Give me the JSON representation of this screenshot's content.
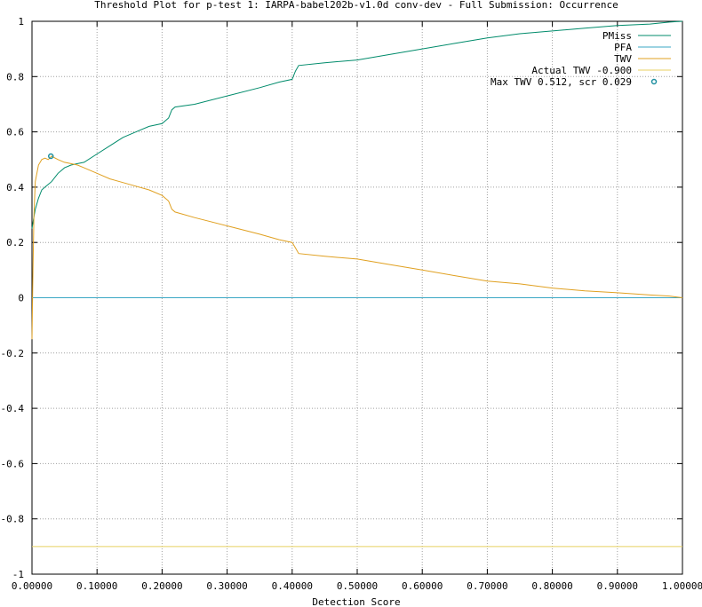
{
  "chart_data": {
    "type": "line",
    "title": "Threshold Plot for p-test 1: IARPA-babel202b-v1.0d conv-dev - Full Submission: Occurrence",
    "xlabel": "Detection Score",
    "ylabel": "",
    "xlim": [
      0,
      1
    ],
    "ylim": [
      -1,
      1
    ],
    "x_ticks": [
      "0.00000",
      "0.10000",
      "0.20000",
      "0.30000",
      "0.40000",
      "0.50000",
      "0.60000",
      "0.70000",
      "0.80000",
      "0.90000",
      "1.00000"
    ],
    "y_ticks": [
      "-1",
      "-0.8",
      "-0.6",
      "-0.4",
      "-0.2",
      "0",
      "0.2",
      "0.4",
      "0.6",
      "0.8",
      "1"
    ],
    "grid": true,
    "legend_position": "top-right",
    "colors": {
      "pmiss": "#008b6b",
      "pfa": "#3ba7c5",
      "twv": "#e0a020",
      "actual": "#e8d060",
      "max": "#1e8fa0"
    },
    "series": [
      {
        "name": "PMiss",
        "x": [
          0,
          0.002,
          0.005,
          0.01,
          0.015,
          0.02,
          0.025,
          0.03,
          0.04,
          0.05,
          0.06,
          0.07,
          0.08,
          0.1,
          0.12,
          0.14,
          0.16,
          0.18,
          0.2,
          0.21,
          0.215,
          0.22,
          0.25,
          0.3,
          0.35,
          0.38,
          0.4,
          0.405,
          0.41,
          0.45,
          0.5,
          0.55,
          0.6,
          0.65,
          0.7,
          0.75,
          0.8,
          0.85,
          0.9,
          0.95,
          0.98,
          1.0
        ],
        "values": [
          0.25,
          0.28,
          0.32,
          0.36,
          0.39,
          0.4,
          0.41,
          0.42,
          0.45,
          0.47,
          0.48,
          0.485,
          0.49,
          0.52,
          0.55,
          0.58,
          0.6,
          0.62,
          0.63,
          0.65,
          0.68,
          0.69,
          0.7,
          0.73,
          0.76,
          0.78,
          0.79,
          0.82,
          0.84,
          0.85,
          0.86,
          0.88,
          0.9,
          0.92,
          0.94,
          0.955,
          0.965,
          0.975,
          0.985,
          0.99,
          0.997,
          1.0
        ]
      },
      {
        "name": "PFA",
        "x": [
          0,
          1
        ],
        "values": [
          0,
          0
        ]
      },
      {
        "name": "TWV",
        "x": [
          0,
          0.0015,
          0.003,
          0.005,
          0.01,
          0.015,
          0.02,
          0.025,
          0.03,
          0.04,
          0.05,
          0.06,
          0.07,
          0.08,
          0.1,
          0.12,
          0.15,
          0.18,
          0.2,
          0.21,
          0.215,
          0.22,
          0.25,
          0.3,
          0.35,
          0.38,
          0.4,
          0.405,
          0.41,
          0.45,
          0.5,
          0.55,
          0.6,
          0.65,
          0.7,
          0.75,
          0.8,
          0.85,
          0.9,
          0.95,
          0.98,
          1.0
        ],
        "values": [
          -0.15,
          0.1,
          0.3,
          0.42,
          0.48,
          0.5,
          0.505,
          0.5,
          0.512,
          0.5,
          0.49,
          0.485,
          0.48,
          0.47,
          0.45,
          0.43,
          0.41,
          0.39,
          0.37,
          0.35,
          0.32,
          0.31,
          0.29,
          0.26,
          0.23,
          0.21,
          0.2,
          0.18,
          0.16,
          0.15,
          0.14,
          0.12,
          0.1,
          0.08,
          0.06,
          0.05,
          0.035,
          0.025,
          0.018,
          0.01,
          0.006,
          0.0
        ]
      },
      {
        "name": "Actual TWV -0.900",
        "x": [
          0,
          1
        ],
        "values": [
          -0.9,
          -0.9
        ]
      }
    ],
    "max_point": {
      "name": "Max TWV 0.512, scr 0.029",
      "x": 0.029,
      "y": 0.512
    }
  }
}
